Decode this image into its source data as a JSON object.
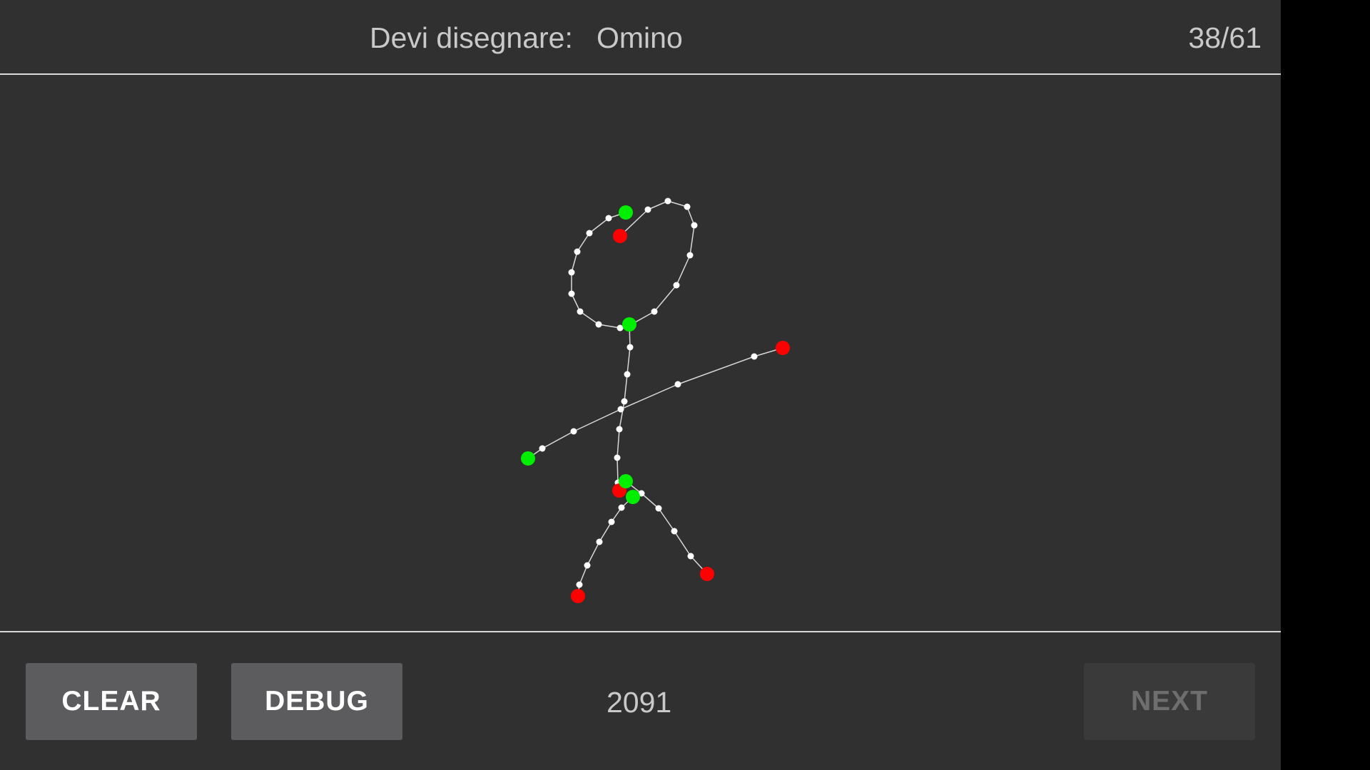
{
  "header": {
    "prompt_label": "Devi disegnare:",
    "prompt_word": "Omino",
    "progress": "38/61"
  },
  "footer": {
    "clear_label": "CLEAR",
    "debug_label": "DEBUG",
    "score": "2091",
    "next_label": "NEXT",
    "next_enabled": false
  },
  "colors": {
    "background": "#303030",
    "stroke": "#d8d8d8",
    "point": "#ffffff",
    "stroke_start": "#00ee00",
    "stroke_end": "#ff0000"
  }
}
